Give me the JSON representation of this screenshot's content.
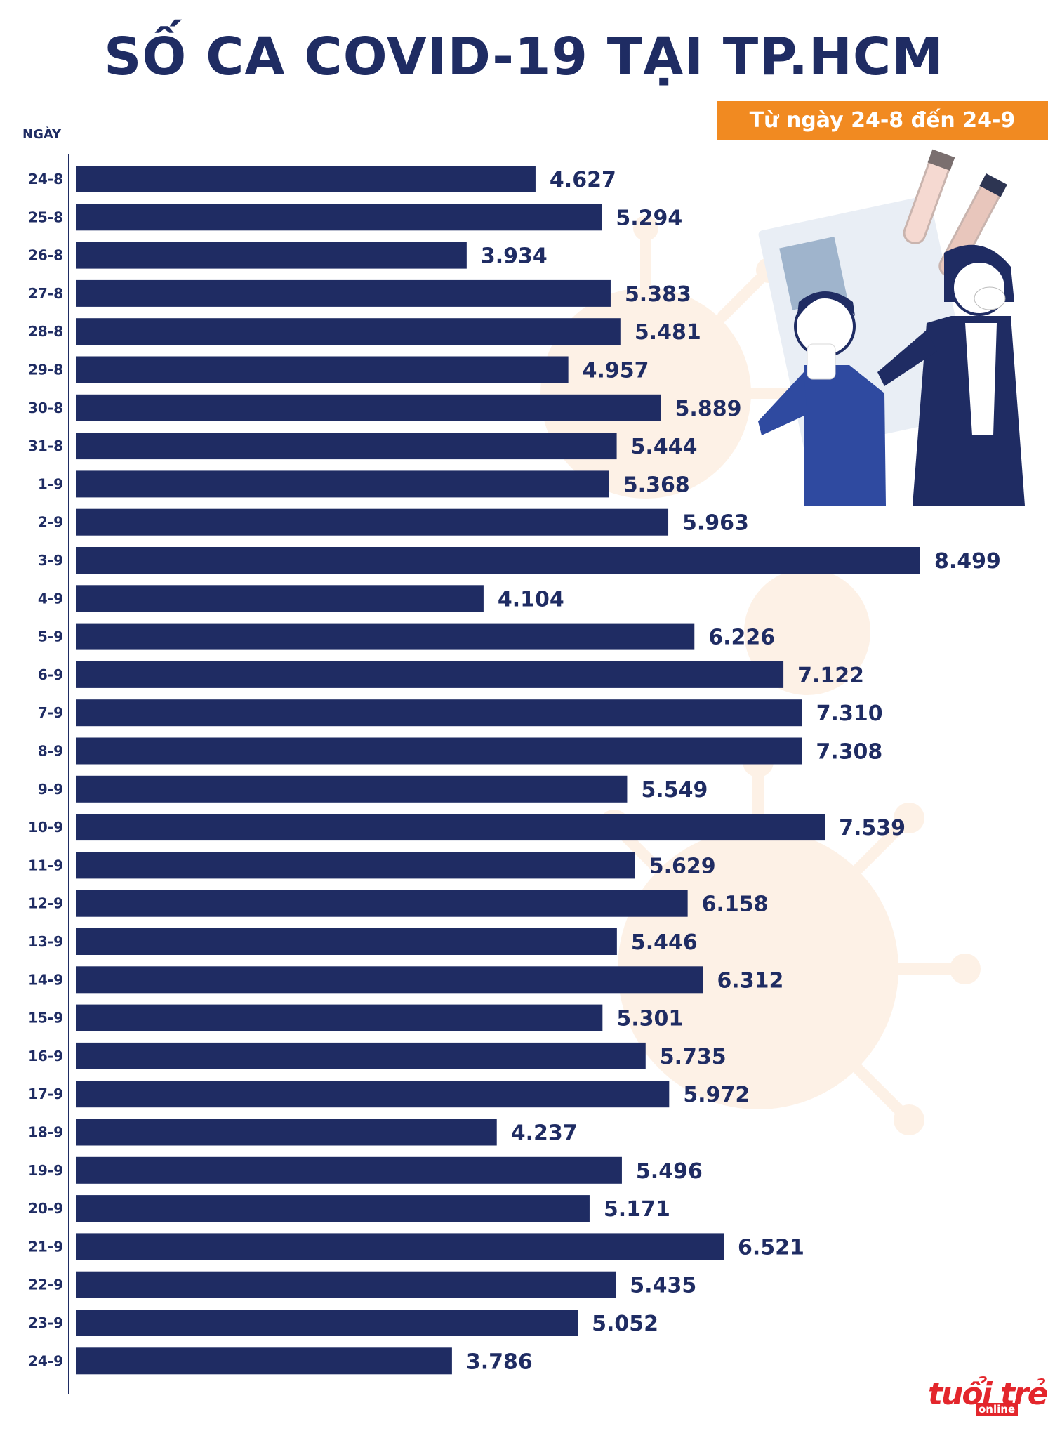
{
  "header": {
    "title": "SỐ CA COVID-19 TẠI TP.HCM",
    "date_range": "Từ ngày 24-8 đến 24-9",
    "column_label": "NGÀY"
  },
  "logo": {
    "main": "tuổi trẻ",
    "sub": "online"
  },
  "colors": {
    "bar": "#1f2c63",
    "accent": "#f18a21",
    "brand": "#e3262c",
    "text": "#1f2c63"
  },
  "chart_data": {
    "type": "bar",
    "orientation": "horizontal",
    "title": "SỐ CA COVID-19 TẠI TP.HCM",
    "subtitle": "Từ ngày 24-8 đến 24-9",
    "ylabel": "NGÀY",
    "xlim": [
      0,
      8499
    ],
    "categories": [
      "24-8",
      "25-8",
      "26-8",
      "27-8",
      "28-8",
      "29-8",
      "30-8",
      "31-8",
      "1-9",
      "2-9",
      "3-9",
      "4-9",
      "5-9",
      "6-9",
      "7-9",
      "8-9",
      "9-9",
      "10-9",
      "11-9",
      "12-9",
      "13-9",
      "14-9",
      "15-9",
      "16-9",
      "17-9",
      "18-9",
      "19-9",
      "20-9",
      "21-9",
      "22-9",
      "23-9",
      "24-9"
    ],
    "values": [
      4627,
      5294,
      3934,
      5383,
      5481,
      4957,
      5889,
      5444,
      5368,
      5963,
      8499,
      4104,
      6226,
      7122,
      7310,
      7308,
      5549,
      7539,
      5629,
      6158,
      5446,
      6312,
      5301,
      5735,
      5972,
      4237,
      5496,
      5171,
      6521,
      5435,
      5052,
      3786
    ],
    "labels": [
      "4.627",
      "5.294",
      "3.934",
      "5.383",
      "5.481",
      "4.957",
      "5.889",
      "5.444",
      "5.368",
      "5.963",
      "8.499",
      "4.104",
      "6.226",
      "7.122",
      "7.310",
      "7.308",
      "5.549",
      "7.539",
      "5.629",
      "6.158",
      "5.446",
      "6.312",
      "5.301",
      "5.735",
      "5.972",
      "4.237",
      "5.496",
      "5.171",
      "6.521",
      "5.435",
      "5.052",
      "3.786"
    ]
  }
}
